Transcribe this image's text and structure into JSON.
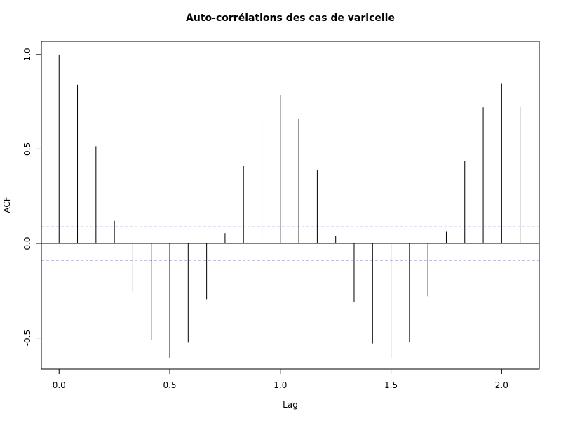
{
  "chart_data": {
    "type": "bar",
    "title": "Auto-corrélations des cas de varicelle",
    "xlabel": "Lag",
    "ylabel": "ACF",
    "xlim": [
      -0.08,
      2.17
    ],
    "ylim": [
      -0.665,
      1.07
    ],
    "x_ticks": [
      "0.0",
      "0.5",
      "1.0",
      "1.5",
      "2.0"
    ],
    "y_ticks": [
      "-0.5",
      "0.0",
      "0.5",
      "1.0"
    ],
    "confidence_bound": 0.088,
    "colors": {
      "bars": "#000000",
      "confidence": "#0000ff",
      "zero_line": "#000000"
    },
    "lags": [
      0.0,
      0.0833,
      0.1667,
      0.25,
      0.3333,
      0.4167,
      0.5,
      0.5833,
      0.6667,
      0.75,
      0.8333,
      0.9167,
      1.0,
      1.0833,
      1.1667,
      1.25,
      1.3333,
      1.4167,
      1.5,
      1.5833,
      1.6667,
      1.75,
      1.8333,
      1.9167,
      2.0,
      2.0833
    ],
    "values": [
      1.0,
      0.84,
      0.515,
      0.12,
      -0.255,
      -0.51,
      -0.605,
      -0.525,
      -0.295,
      0.055,
      0.41,
      0.675,
      0.785,
      0.66,
      0.39,
      0.04,
      -0.31,
      -0.53,
      -0.605,
      -0.52,
      -0.28,
      0.065,
      0.435,
      0.72,
      0.845,
      0.725
    ]
  }
}
